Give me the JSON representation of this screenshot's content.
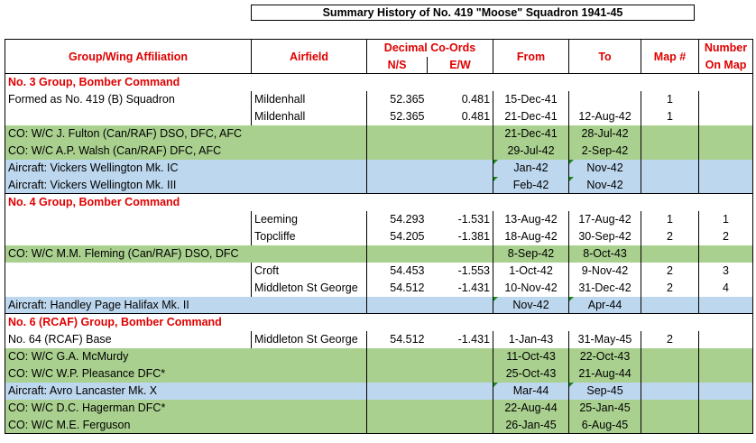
{
  "title": "Summary History of No. 419 \"Moose\" Squadron 1941-45",
  "headers": {
    "group": "Group/Wing Affiliation",
    "airfield": "Airfield",
    "decimal": "Decimal Co-Ords",
    "ns": "N/S",
    "ew": "E/W",
    "from": "From",
    "to": "To",
    "map": "Map #",
    "number1": "Number",
    "number2": "On Map"
  },
  "rows": [
    {
      "type": "group",
      "label": "No. 3 Group, Bomber Command"
    },
    {
      "type": "plain",
      "label": "Formed as No. 419 (B) Squadron",
      "airfield": "Mildenhall",
      "ns": "52.365",
      "ew": "0.481",
      "from": "15-Dec-41",
      "to": "",
      "map": "1",
      "num": ""
    },
    {
      "type": "plain",
      "label": "",
      "airfield": "Mildenhall",
      "ns": "52.365",
      "ew": "0.481",
      "from": "21-Dec-41",
      "to": "12-Aug-42",
      "map": "1",
      "num": ""
    },
    {
      "type": "green",
      "label": "CO: W/C J. Fulton (Can/RAF) DSO, DFC, AFC",
      "from": "21-Dec-41",
      "to": "28-Jul-42"
    },
    {
      "type": "green",
      "label": "CO: W/C A.P. Walsh (Can/RAF) DFC, AFC",
      "from": "29-Jul-42",
      "to": "2-Sep-42"
    },
    {
      "type": "blue",
      "label": "Aircraft: Vickers Wellington Mk. IC",
      "from": "Jan-42",
      "to": "Nov-42"
    },
    {
      "type": "blue",
      "label": "Aircraft: Vickers Wellington Mk. III",
      "from": "Feb-42",
      "to": "Nov-42"
    },
    {
      "type": "group",
      "label": "No. 4 Group, Bomber Command"
    },
    {
      "type": "plain",
      "label": "",
      "airfield": "Leeming",
      "ns": "54.293",
      "ew": "-1.531",
      "from": "13-Aug-42",
      "to": "17-Aug-42",
      "map": "1",
      "num": "1"
    },
    {
      "type": "plain",
      "label": "",
      "airfield": "Topcliffe",
      "ns": "54.205",
      "ew": "-1.381",
      "from": "18-Aug-42",
      "to": "30-Sep-42",
      "map": "2",
      "num": "2"
    },
    {
      "type": "green",
      "label": "CO: W/C M.M. Fleming (Can/RAF) DSO, DFC",
      "from": "8-Sep-42",
      "to": "8-Oct-43"
    },
    {
      "type": "plain",
      "label": "",
      "airfield": "Croft",
      "ns": "54.453",
      "ew": "-1.553",
      "from": "1-Oct-42",
      "to": "9-Nov-42",
      "map": "2",
      "num": "3"
    },
    {
      "type": "plain",
      "label": "",
      "airfield": "Middleton St George",
      "ns": "54.512",
      "ew": "-1.431",
      "from": "10-Nov-42",
      "to": "31-Dec-42",
      "map": "2",
      "num": "4"
    },
    {
      "type": "blue",
      "label": "Aircraft: Handley Page Halifax Mk. II",
      "from": "Nov-42",
      "to": "Apr-44"
    },
    {
      "type": "group",
      "label": "No. 6 (RCAF) Group, Bomber Command"
    },
    {
      "type": "plain",
      "label": "No. 64 (RCAF) Base",
      "airfield": "Middleton St George",
      "ns": "54.512",
      "ew": "-1.431",
      "from": "1-Jan-43",
      "to": "31-May-45",
      "map": "2",
      "num": ""
    },
    {
      "type": "green",
      "label": "CO: W/C G.A. McMurdy",
      "from": "11-Oct-43",
      "to": "22-Oct-43"
    },
    {
      "type": "green",
      "label": "CO: W/C W.P. Pleasance DFC*",
      "from": "25-Oct-43",
      "to": "21-Aug-44"
    },
    {
      "type": "blue",
      "label": "Aircraft: Avro Lancaster Mk. X",
      "from": "Mar-44",
      "to": "Sep-45"
    },
    {
      "type": "green",
      "label": "CO: W/C D.C. Hagerman DFC*",
      "from": "22-Aug-44",
      "to": "25-Jan-45"
    },
    {
      "type": "green",
      "label": "CO: W/C M.E. Ferguson",
      "from": "26-Jan-45",
      "to": "6-Aug-45"
    }
  ]
}
